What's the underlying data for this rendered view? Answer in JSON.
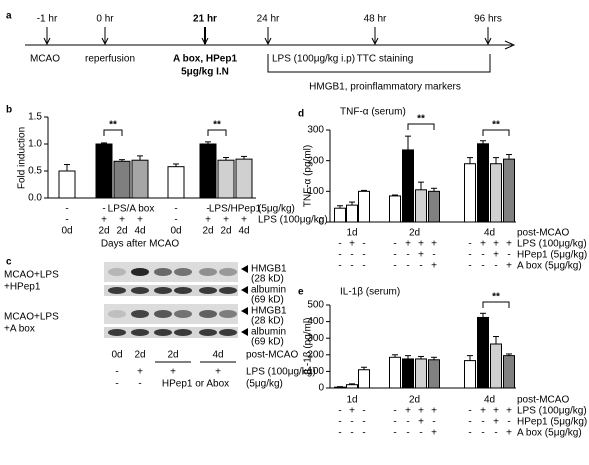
{
  "timeline": {
    "panel": "a",
    "times": [
      "-1 hr",
      "0 hr",
      "21 hr",
      "24 hr",
      "48 hr",
      "96 hrs"
    ],
    "events": [
      "MCAO",
      "reperfusion",
      "A box, HPep1",
      "LPS (100μg/kg i.p)",
      "TTC staining",
      null
    ],
    "dose": "5μg/kg I.N",
    "span": "HMGB1, proinflammatory markers"
  },
  "chart_data": [
    {
      "type": "bar",
      "panel": "b",
      "ylabel": "Fold induction",
      "ylim": [
        0,
        1.5
      ],
      "yticks": [
        {
          "value": 0,
          "label": "0.0"
        },
        0.5,
        {
          "value": 1,
          "label": "1.0"
        },
        1.5
      ],
      "values": [
        0.5,
        1.0,
        0.68,
        0.7,
        0.58,
        1.0,
        0.7,
        0.72
      ],
      "errors": [
        0.12,
        0.02,
        0.03,
        0.08,
        0.05,
        0.04,
        0.05,
        0.05
      ],
      "colors": [
        "#ffffff",
        "#000000",
        "#7f7f7f",
        "#a6a6a6",
        "#ffffff",
        "#000000",
        "#d0d0d0",
        "#d0d0d0"
      ],
      "rows": [
        {
          "cells": [
            "-",
            "-",
            "LPS/A box",
            null,
            "-",
            "-",
            "LPS/HPep1",
            null
          ],
          "label": "(5μg/kg)"
        },
        {
          "cells": [
            "-",
            "+",
            "+",
            "+",
            "-",
            "+",
            "+",
            "+"
          ],
          "label": "LPS (100μg/kg)"
        },
        {
          "cells": [
            "0d",
            "2d",
            "2d",
            "4d",
            "0d",
            "2d",
            "2d",
            "4d"
          ]
        }
      ],
      "xlabel": "Days after MCAO",
      "annotations": [
        "**",
        "**"
      ]
    },
    {
      "type": "bar",
      "panel": "d",
      "title": "TNF-α (serum)",
      "ylabel": "TNF-α (pg/ml)",
      "ylim": [
        0,
        300
      ],
      "yticks": [
        0,
        100,
        200,
        300
      ],
      "values": [
        45,
        55,
        100,
        85,
        235,
        105,
        100,
        190,
        255,
        190,
        205
      ],
      "errors": [
        8,
        10,
        3,
        3,
        45,
        25,
        10,
        20,
        10,
        20,
        15
      ],
      "colors": [
        "#ffffff",
        "#ffffff",
        "#ffffff",
        "#ffffff",
        "#000000",
        "#d0d0d0",
        "#808080",
        "#ffffff",
        "#000000",
        "#d0d0d0",
        "#808080"
      ],
      "rows": [
        {
          "cells": [
            "1d",
            null,
            null,
            "2d",
            null,
            null,
            null,
            "4d",
            null,
            null,
            null
          ],
          "label": "post-MCAO"
        },
        {
          "cells": [
            "-",
            "+",
            "-",
            "-",
            "+",
            "+",
            "+",
            "-",
            "+",
            "+",
            "+"
          ],
          "label": "LPS (100μg/kg)"
        },
        {
          "cells": [
            "-",
            "-",
            "-",
            "-",
            "-",
            "+",
            "-",
            "-",
            "-",
            "+",
            "-"
          ],
          "label": "HPep1 (5μg/kg)"
        },
        {
          "cells": [
            "-",
            "-",
            "-",
            "-",
            "-",
            "-",
            "+",
            "-",
            "-",
            "-",
            "+"
          ],
          "label": "A box (5μg/kg)"
        }
      ],
      "annotations": [
        "**",
        "**"
      ]
    },
    {
      "type": "bar",
      "panel": "e",
      "title": "IL-1β (serum)",
      "ylabel": "IL-1β (pg/ml)",
      "ylim": [
        0,
        500
      ],
      "yticks": [
        0,
        100,
        200,
        300,
        400,
        500
      ],
      "values": [
        5,
        20,
        110,
        185,
        175,
        175,
        170,
        165,
        425,
        265,
        195
      ],
      "errors": [
        3,
        5,
        15,
        15,
        20,
        15,
        15,
        30,
        25,
        45,
        10
      ],
      "colors": [
        "#ffffff",
        "#ffffff",
        "#ffffff",
        "#ffffff",
        "#000000",
        "#d0d0d0",
        "#808080",
        "#ffffff",
        "#000000",
        "#d0d0d0",
        "#808080"
      ],
      "rows": [
        {
          "cells": [
            "1d",
            null,
            null,
            "2d",
            null,
            null,
            null,
            "4d",
            null,
            null,
            null
          ],
          "label": "post-MCAO"
        },
        {
          "cells": [
            "-",
            "+",
            "-",
            "-",
            "+",
            "+",
            "+",
            "-",
            "+",
            "+",
            "+"
          ],
          "label": "LPS (100μg/kg)"
        },
        {
          "cells": [
            "-",
            "-",
            "-",
            "-",
            "-",
            "+",
            "-",
            "-",
            "-",
            "+",
            "-"
          ],
          "label": "HPep1 (5μg/kg)"
        },
        {
          "cells": [
            "-",
            "-",
            "-",
            "-",
            "-",
            "-",
            "+",
            "-",
            "-",
            "-",
            "+"
          ],
          "label": "A box (5μg/kg)"
        }
      ],
      "annotations": [
        "**"
      ]
    }
  ],
  "blot": {
    "panel": "c",
    "samples": [
      {
        "lines": [
          "MCAO+LPS",
          "+HPep1"
        ]
      },
      {
        "lines": [
          "MCAO+LPS",
          "+A box"
        ]
      }
    ],
    "bands": [
      {
        "name": "HMGB1",
        "size": "(28 kD)"
      },
      {
        "name": "albumin",
        "size": "(69 kD)"
      }
    ],
    "rows": [
      {
        "cells": [
          "0d",
          "2d",
          "2d",
          null,
          "4d",
          null
        ],
        "label": "post-MCAO"
      },
      {
        "cells": [
          "-",
          "+",
          "+",
          null,
          "+",
          null
        ],
        "label": "LPS (100μg/kg)"
      },
      {
        "cells": [
          "-",
          "-",
          "HPep1 or Abox",
          null,
          null,
          null
        ],
        "label": "(5μg/kg)"
      }
    ]
  }
}
